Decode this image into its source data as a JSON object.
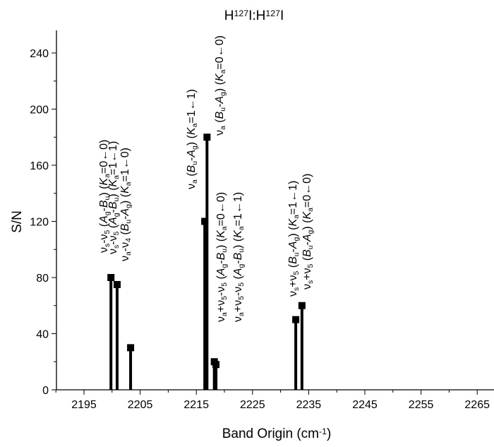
{
  "chart_data": {
    "type": "bar",
    "title": {
      "parts": [
        {
          "t": "H"
        },
        {
          "t": "127",
          "sup": true
        },
        {
          "t": "I:H"
        },
        {
          "t": "127",
          "sup": true
        },
        {
          "t": "I"
        }
      ]
    },
    "xlabel": {
      "parts": [
        {
          "t": "Band Origin (cm"
        },
        {
          "t": "-1",
          "sup": true
        },
        {
          "t": ")"
        }
      ]
    },
    "ylabel": "S/N",
    "xlim": [
      2190,
      2270
    ],
    "ylim": [
      0,
      250
    ],
    "xticks": [
      2195,
      2205,
      2215,
      2225,
      2235,
      2245,
      2255,
      2265
    ],
    "yticks": [
      0,
      40,
      80,
      120,
      160,
      200,
      240
    ],
    "grid": false,
    "marker": "square",
    "color": "#000000",
    "points": [
      {
        "x": 2199.8,
        "y": 80
      },
      {
        "x": 2200.9,
        "y": 75
      },
      {
        "x": 2203.3,
        "y": 30
      },
      {
        "x": 2216.5,
        "y": 120
      },
      {
        "x": 2216.9,
        "y": 180
      },
      {
        "x": 2218.2,
        "y": 20
      },
      {
        "x": 2218.5,
        "y": 18
      },
      {
        "x": 2232.7,
        "y": 50
      },
      {
        "x": 2233.8,
        "y": 60
      }
    ],
    "annotations": [
      [
        {
          "t": "ν"
        },
        {
          "t": "s",
          "sub": true
        },
        {
          "t": "-ν"
        },
        {
          "t": "5",
          "sub": true
        },
        {
          "t": " ("
        },
        {
          "t": "A",
          "it": true
        },
        {
          "t": "g",
          "sub": true
        },
        {
          "t": "-"
        },
        {
          "t": "B",
          "it": true
        },
        {
          "t": "u",
          "sub": true
        },
        {
          "t": ") ("
        },
        {
          "t": "K",
          "it": true
        },
        {
          "t": "a",
          "sub": true
        },
        {
          "t": "=0←0)"
        }
      ],
      [
        {
          "t": "ν"
        },
        {
          "t": "s",
          "sub": true
        },
        {
          "t": "-ν"
        },
        {
          "t": "5",
          "sub": true
        },
        {
          "t": " ("
        },
        {
          "t": "A",
          "it": true
        },
        {
          "t": "g",
          "sub": true
        },
        {
          "t": "-"
        },
        {
          "t": "B",
          "it": true
        },
        {
          "t": "u",
          "sub": true
        },
        {
          "t": ") ("
        },
        {
          "t": "K",
          "it": true
        },
        {
          "t": "a",
          "sub": true
        },
        {
          "t": "=1←1)"
        }
      ],
      [
        {
          "t": "ν"
        },
        {
          "t": "a",
          "sub": true
        },
        {
          "t": "-ν"
        },
        {
          "t": "4",
          "sub": true
        },
        {
          "t": " ("
        },
        {
          "t": "B",
          "it": true
        },
        {
          "t": "u",
          "sub": true
        },
        {
          "t": "-"
        },
        {
          "t": "A",
          "it": true
        },
        {
          "t": "g",
          "sub": true
        },
        {
          "t": ") ("
        },
        {
          "t": "K",
          "it": true
        },
        {
          "t": "a",
          "sub": true
        },
        {
          "t": "=1←0)"
        }
      ],
      [
        {
          "t": "ν"
        },
        {
          "t": "a",
          "sub": true
        },
        {
          "t": " ("
        },
        {
          "t": "B",
          "it": true
        },
        {
          "t": "u",
          "sub": true
        },
        {
          "t": "-"
        },
        {
          "t": "A",
          "it": true
        },
        {
          "t": "g",
          "sub": true
        },
        {
          "t": ") ("
        },
        {
          "t": "K",
          "it": true
        },
        {
          "t": "a",
          "sub": true
        },
        {
          "t": "=1←1)"
        }
      ],
      [
        {
          "t": "ν"
        },
        {
          "t": "a",
          "sub": true
        },
        {
          "t": " ("
        },
        {
          "t": "B",
          "it": true
        },
        {
          "t": "u",
          "sub": true
        },
        {
          "t": "-"
        },
        {
          "t": "A",
          "it": true
        },
        {
          "t": "g",
          "sub": true
        },
        {
          "t": ") ("
        },
        {
          "t": "K",
          "it": true
        },
        {
          "t": "a",
          "sub": true
        },
        {
          "t": "=0←0)"
        }
      ],
      [
        {
          "t": "ν"
        },
        {
          "t": "a",
          "sub": true
        },
        {
          "t": "+ν"
        },
        {
          "t": "5",
          "sub": true
        },
        {
          "t": "-ν"
        },
        {
          "t": "5",
          "sub": true
        },
        {
          "t": " ("
        },
        {
          "t": "A",
          "it": true
        },
        {
          "t": "g",
          "sub": true
        },
        {
          "t": "-"
        },
        {
          "t": "B",
          "it": true
        },
        {
          "t": "u",
          "sub": true
        },
        {
          "t": ") ("
        },
        {
          "t": "K",
          "it": true
        },
        {
          "t": "a",
          "sub": true
        },
        {
          "t": "=0←0)"
        }
      ],
      [
        {
          "t": "ν"
        },
        {
          "t": "a",
          "sub": true
        },
        {
          "t": "+ν"
        },
        {
          "t": "5",
          "sub": true
        },
        {
          "t": "-ν"
        },
        {
          "t": "5",
          "sub": true
        },
        {
          "t": " ("
        },
        {
          "t": "A",
          "it": true
        },
        {
          "t": "g",
          "sub": true
        },
        {
          "t": "-"
        },
        {
          "t": "B",
          "it": true
        },
        {
          "t": "u",
          "sub": true
        },
        {
          "t": ") ("
        },
        {
          "t": "K",
          "it": true
        },
        {
          "t": "a",
          "sub": true
        },
        {
          "t": "=1←1)"
        }
      ],
      [
        {
          "t": "ν"
        },
        {
          "t": "s",
          "sub": true
        },
        {
          "t": "+ν"
        },
        {
          "t": "5",
          "sub": true
        },
        {
          "t": " ("
        },
        {
          "t": "B",
          "it": true
        },
        {
          "t": "u",
          "sub": true
        },
        {
          "t": "-"
        },
        {
          "t": "A",
          "it": true
        },
        {
          "t": "g",
          "sub": true
        },
        {
          "t": ") ("
        },
        {
          "t": "K",
          "it": true
        },
        {
          "t": "a",
          "sub": true
        },
        {
          "t": "=1←1)"
        }
      ],
      [
        {
          "t": "ν"
        },
        {
          "t": "s",
          "sub": true
        },
        {
          "t": "+ν"
        },
        {
          "t": "5",
          "sub": true
        },
        {
          "t": " ("
        },
        {
          "t": "B",
          "it": true
        },
        {
          "t": "u",
          "sub": true
        },
        {
          "t": "-"
        },
        {
          "t": "A",
          "it": true
        },
        {
          "t": "g",
          "sub": true
        },
        {
          "t": ") ("
        },
        {
          "t": "K",
          "it": true
        },
        {
          "t": "a",
          "sub": true
        },
        {
          "t": "=0←0)"
        }
      ]
    ]
  }
}
